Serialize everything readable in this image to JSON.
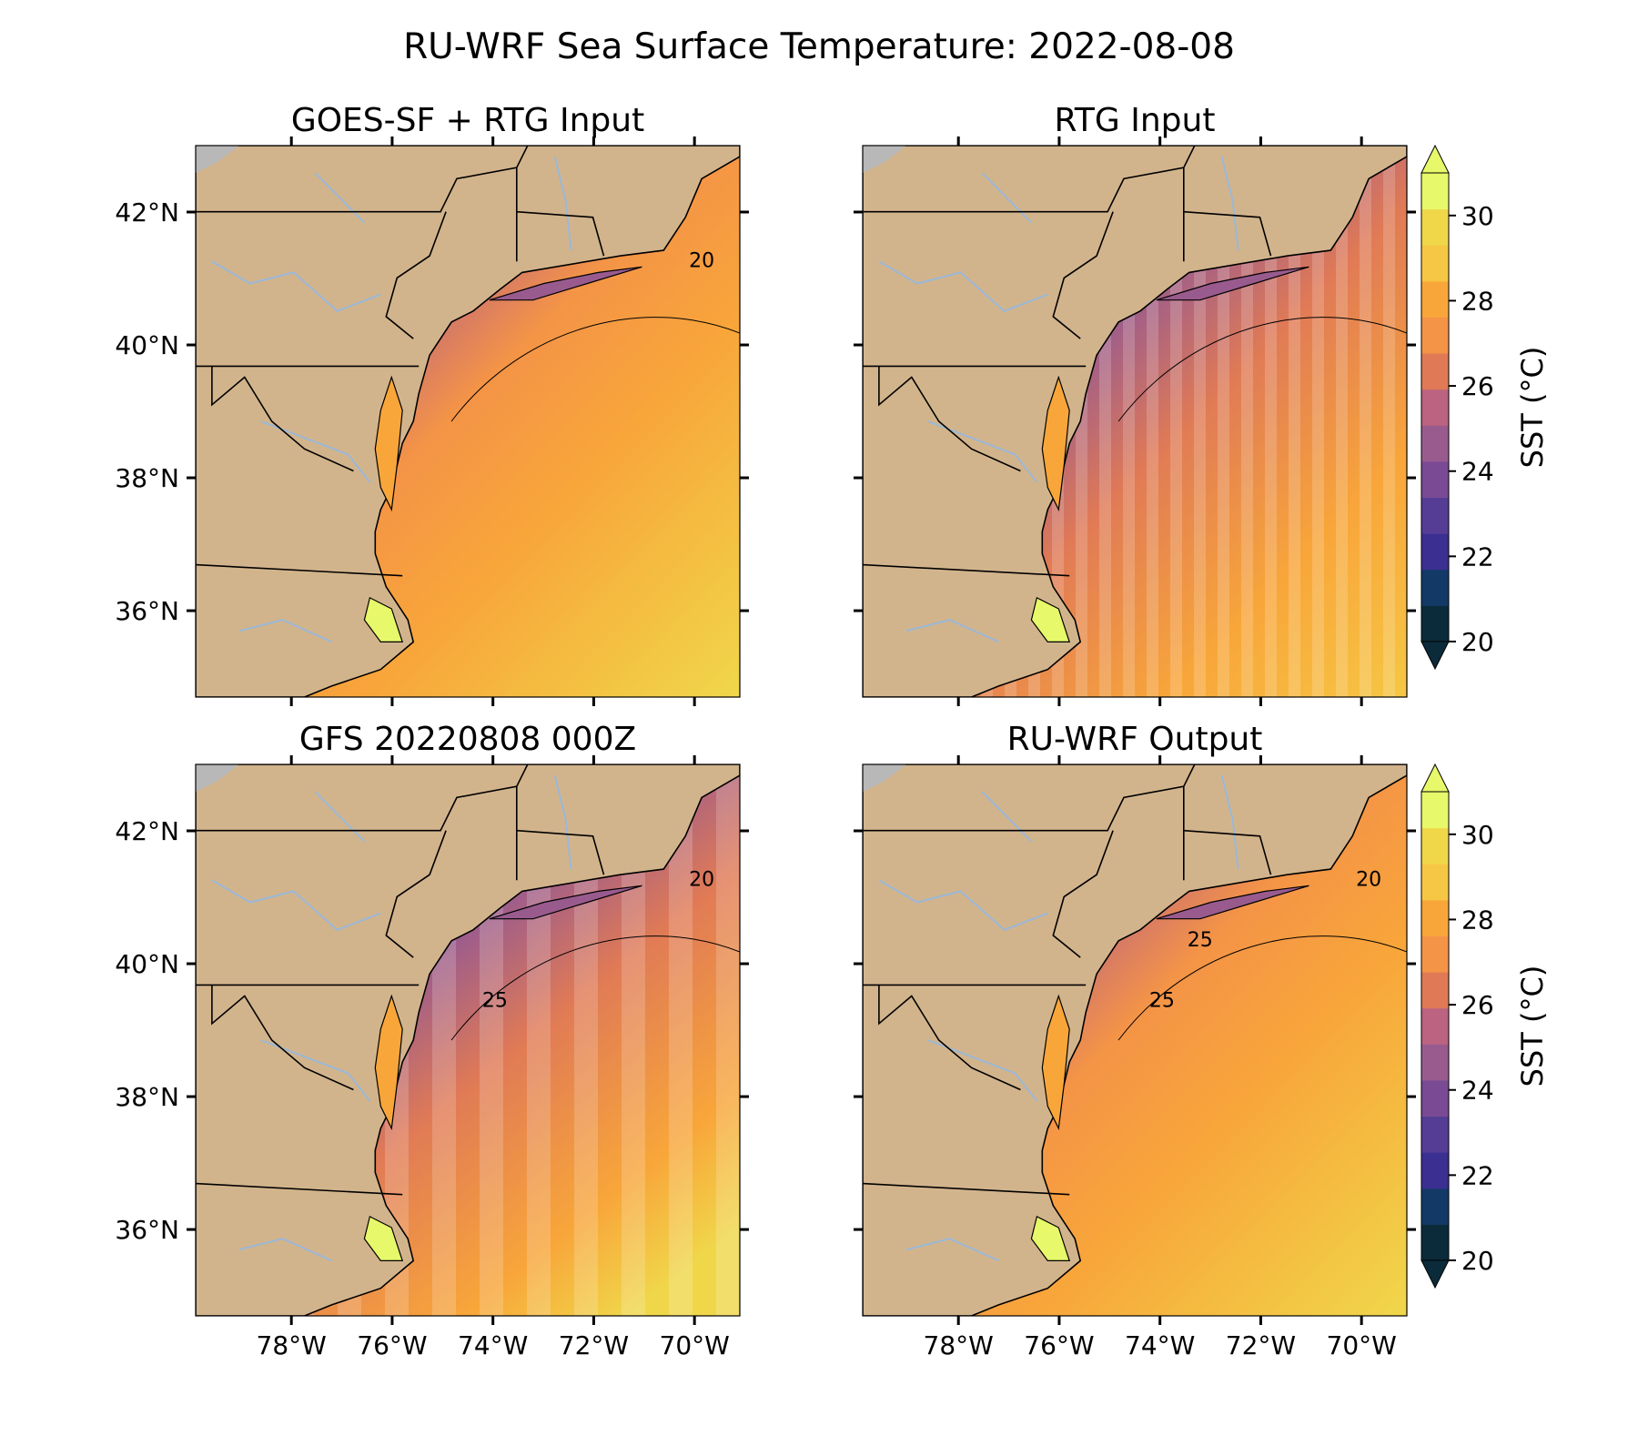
{
  "figure": {
    "title": "RU-WRF Sea Surface Temperature: 2022-08-08"
  },
  "panels": [
    {
      "id": "goes",
      "title": "GOES-SF + RTG Input",
      "contour_labels": [
        "20"
      ],
      "render": "fine"
    },
    {
      "id": "rtg",
      "title": "RTG Input",
      "contour_labels": [],
      "render": "blocky"
    },
    {
      "id": "gfs",
      "title": "GFS 20220808 000Z",
      "contour_labels": [
        "20",
        "25"
      ],
      "render": "coarse"
    },
    {
      "id": "ruwrf",
      "title": "RU-WRF Output",
      "contour_labels": [
        "20",
        "25",
        "25"
      ],
      "render": "fine"
    }
  ],
  "axes": {
    "lat_ticks": [
      "42°N",
      "40°N",
      "38°N",
      "36°N"
    ],
    "lon_ticks": [
      "78°W",
      "76°W",
      "74°W",
      "72°W",
      "70°W"
    ],
    "lat_values": [
      42,
      40,
      38,
      36
    ],
    "lon_values": [
      -78,
      -76,
      -74,
      -72,
      -70
    ],
    "extent": {
      "lon_min": -79.9,
      "lon_max": -69.1,
      "lat_min": 34.7,
      "lat_max": 43.0
    }
  },
  "colorbar": {
    "label": "SST (°C)",
    "ticks": [
      "20",
      "22",
      "24",
      "26",
      "28",
      "30"
    ],
    "tick_values": [
      20,
      22,
      24,
      26,
      28,
      30
    ],
    "min": 20,
    "max": 31,
    "extend": "both",
    "colors": [
      "#0b2b3a",
      "#133a66",
      "#3b2f91",
      "#553d95",
      "#7a4a94",
      "#995b8e",
      "#bb6380",
      "#e07a56",
      "#f49447",
      "#f8a63a",
      "#f6c744",
      "#f0d74a",
      "#e7f86a"
    ]
  },
  "map_colors": {
    "land": "#d2b48c",
    "ocean_cool": "#553d95",
    "ocean_mid": "#995b8e",
    "ocean_warm": "#f8a63a",
    "ocean_hot": "#f6c744",
    "rivers": "#9bb8d8",
    "borders": "#000000",
    "out_of_domain": "#b8b8b8"
  }
}
